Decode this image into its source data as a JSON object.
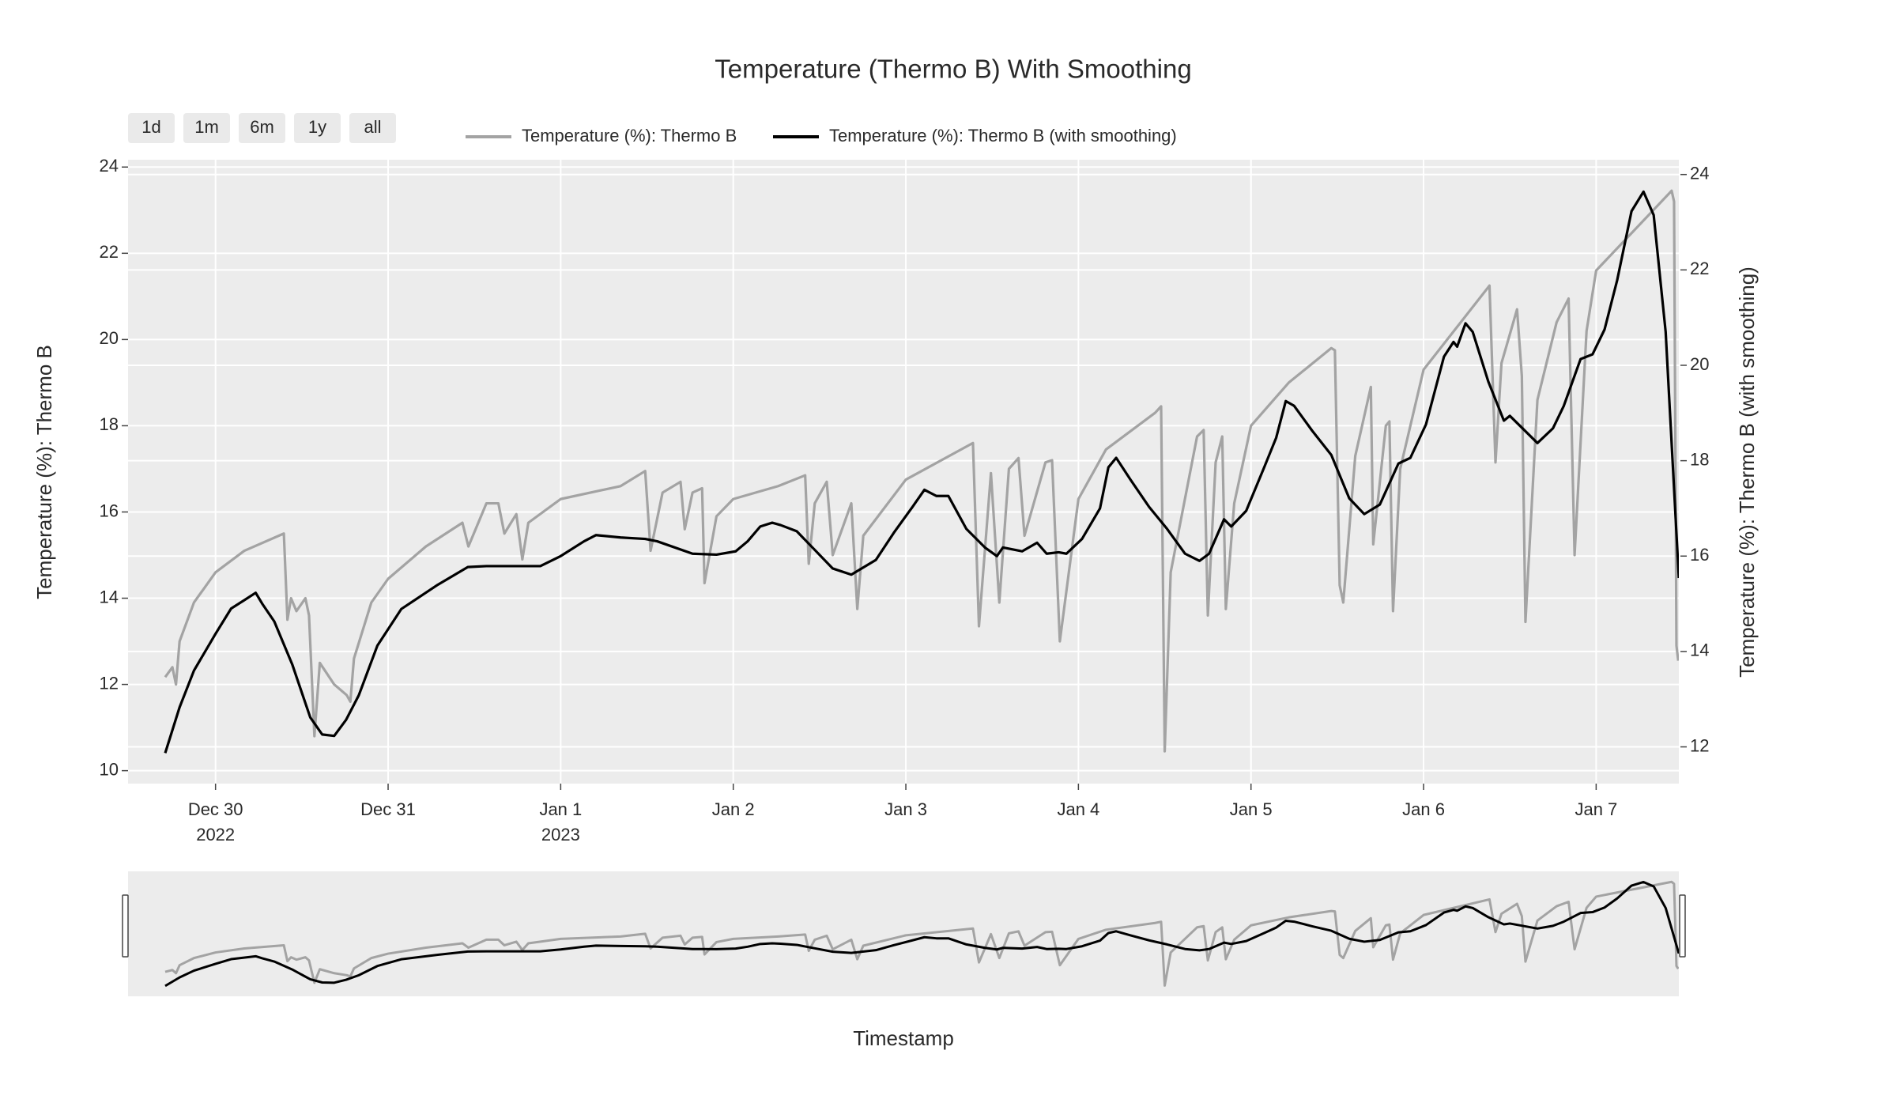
{
  "chart_data": {
    "type": "line",
    "title": "Temperature (Thermo B) With Smoothing",
    "xlabel": "Timestamp",
    "ylabel": "Temperature (%): Thermo B",
    "y2label": "Temperature (%): Thermo B (with smoothing)",
    "rangeselector": [
      "1d",
      "1m",
      "6m",
      "1y",
      "all"
    ],
    "rangeslider": true,
    "grid": true,
    "xlim": [
      "2022-12-29 11:50",
      "2023-01-07 11:30"
    ],
    "xticks": [
      {
        "value": "2022-12-30 00:00",
        "label": "Dec 30\n2022"
      },
      {
        "value": "2022-12-31 00:00",
        "label": "Dec 31"
      },
      {
        "value": "2023-01-01 00:00",
        "label": "Jan 1\n2023"
      },
      {
        "value": "2023-01-02 00:00",
        "label": "Jan 2"
      },
      {
        "value": "2023-01-03 00:00",
        "label": "Jan 3"
      },
      {
        "value": "2023-01-04 00:00",
        "label": "Jan 4"
      },
      {
        "value": "2023-01-05 00:00",
        "label": "Jan 5"
      },
      {
        "value": "2023-01-06 00:00",
        "label": "Jan 6"
      },
      {
        "value": "2023-01-07 00:00",
        "label": "Jan 7"
      }
    ],
    "ylim": [
      9.7,
      24.17
    ],
    "yticks": [
      10,
      12,
      14,
      16,
      18,
      20,
      22,
      24
    ],
    "y2lim": [
      11.23,
      24.31
    ],
    "y2ticks": [
      12,
      14,
      16,
      18,
      20,
      22,
      24
    ],
    "series": [
      {
        "name": "Temperature (%): Thermo B",
        "color": "#a3a3a3",
        "x": [
          "2022-12-29 17:00",
          "2022-12-29 18:00",
          "2022-12-29 18:30",
          "2022-12-29 19:00",
          "2022-12-29 21:00",
          "2022-12-30 00:00",
          "2022-12-30 04:00",
          "2022-12-30 09:30",
          "2022-12-30 10:00",
          "2022-12-30 10:30",
          "2022-12-30 11:15",
          "2022-12-30 12:30",
          "2022-12-30 13:00",
          "2022-12-30 13:45",
          "2022-12-30 14:30",
          "2022-12-30 16:30",
          "2022-12-30 18:15",
          "2022-12-30 18:45",
          "2022-12-30 19:15",
          "2022-12-30 21:40",
          "2022-12-31 00:00",
          "2022-12-31 05:15",
          "2022-12-31 10:20",
          "2022-12-31 11:10",
          "2022-12-31 13:40",
          "2022-12-31 15:20",
          "2022-12-31 16:10",
          "2022-12-31 17:50",
          "2022-12-31 18:40",
          "2022-12-31 19:30",
          "2023-01-01 00:00",
          "2023-01-01 08:20",
          "2023-01-01 11:45",
          "2023-01-01 12:30",
          "2023-01-01 14:10",
          "2023-01-01 16:40",
          "2023-01-01 17:15",
          "2023-01-01 18:20",
          "2023-01-01 19:40",
          "2023-01-01 20:00",
          "2023-01-01 21:40",
          "2023-01-02 00:00",
          "2023-01-02 06:15",
          "2023-01-02 10:00",
          "2023-01-02 10:30",
          "2023-01-02 11:20",
          "2023-01-02 13:00",
          "2023-01-02 13:50",
          "2023-01-02 16:25",
          "2023-01-02 17:15",
          "2023-01-02 18:05",
          "2023-01-03 00:00",
          "2023-01-03 09:20",
          "2023-01-03 10:10",
          "2023-01-03 11:50",
          "2023-01-03 13:00",
          "2023-01-03 14:20",
          "2023-01-03 15:40",
          "2023-01-03 16:30",
          "2023-01-03 19:25",
          "2023-01-03 20:20",
          "2023-01-03 21:25",
          "2023-01-04 00:00",
          "2023-01-04 03:50",
          "2023-01-04 10:40",
          "2023-01-04 11:30",
          "2023-01-04 12:00",
          "2023-01-04 12:50",
          "2023-01-04 16:30",
          "2023-01-04 17:25",
          "2023-01-04 18:00",
          "2023-01-04 19:05",
          "2023-01-04 20:00",
          "2023-01-04 20:30",
          "2023-01-04 21:40",
          "2023-01-05 00:00",
          "2023-01-05 05:15",
          "2023-01-05 11:10",
          "2023-01-05 11:40",
          "2023-01-05 12:20",
          "2023-01-05 12:50",
          "2023-01-05 14:30",
          "2023-01-05 16:40",
          "2023-01-05 17:00",
          "2023-01-05 18:45",
          "2023-01-05 19:15",
          "2023-01-05 19:45",
          "2023-01-05 20:45",
          "2023-01-06 00:00",
          "2023-01-06 09:10",
          "2023-01-06 10:00",
          "2023-01-06 10:50",
          "2023-01-06 13:00",
          "2023-01-06 13:40",
          "2023-01-06 14:10",
          "2023-01-06 15:50",
          "2023-01-06 18:30",
          "2023-01-06 20:10",
          "2023-01-06 21:00",
          "2023-01-06 22:40",
          "2023-01-07 00:00",
          "2023-01-07 10:30",
          "2023-01-07 10:50",
          "2023-01-07 11:10",
          "2023-01-07 11:25"
        ],
        "values": [
          12.17,
          12.4,
          12.0,
          13.0,
          13.9,
          14.6,
          15.1,
          15.5,
          13.5,
          14.0,
          13.7,
          14.0,
          13.6,
          10.8,
          12.5,
          12.0,
          11.75,
          11.6,
          12.6,
          13.9,
          14.45,
          15.2,
          15.75,
          15.2,
          16.2,
          16.2,
          15.5,
          15.95,
          14.9,
          15.75,
          16.3,
          16.6,
          16.95,
          15.1,
          16.45,
          16.7,
          15.6,
          16.45,
          16.55,
          14.35,
          15.9,
          16.3,
          16.6,
          16.85,
          14.8,
          16.2,
          16.7,
          15.0,
          16.2,
          13.75,
          15.45,
          16.75,
          17.6,
          13.35,
          16.9,
          13.9,
          17.0,
          17.25,
          15.45,
          17.15,
          17.2,
          13.0,
          16.3,
          17.45,
          18.3,
          18.45,
          10.45,
          14.6,
          17.75,
          17.9,
          13.6,
          17.15,
          17.75,
          13.75,
          16.2,
          18.0,
          19.0,
          19.8,
          19.75,
          14.3,
          13.9,
          17.3,
          18.9,
          15.25,
          18.0,
          18.1,
          13.7,
          17.0,
          19.3,
          21.25,
          17.15,
          19.45,
          20.7,
          19.15,
          13.45,
          18.6,
          20.4,
          20.95,
          15.0,
          20.2,
          21.6,
          23.45,
          23.2,
          12.9,
          12.55
        ]
      },
      {
        "name": "Temperature (%): Thermo B (with smoothing)",
        "color": "#000000",
        "axis": "y2",
        "x": [
          "2022-12-29 17:00",
          "2022-12-29 19:00",
          "2022-12-29 21:00",
          "2022-12-30 00:00",
          "2022-12-30 02:10",
          "2022-12-30 03:50",
          "2022-12-30 05:35",
          "2022-12-30 06:30",
          "2022-12-30 08:10",
          "2022-12-30 10:40",
          "2022-12-30 13:10",
          "2022-12-30 14:50",
          "2022-12-30 16:30",
          "2022-12-30 18:10",
          "2022-12-30 19:55",
          "2022-12-30 22:30",
          "2022-12-31 01:50",
          "2022-12-31 06:55",
          "2022-12-31 11:05",
          "2022-12-31 13:40",
          "2022-12-31 18:40",
          "2022-12-31 21:10",
          "2023-01-01 00:00",
          "2023-01-01 03:15",
          "2023-01-01 04:55",
          "2023-01-01 08:20",
          "2023-01-01 11:45",
          "2023-01-01 13:25",
          "2023-01-01 18:20",
          "2023-01-01 21:40",
          "2023-01-02 00:20",
          "2023-01-02 02:00",
          "2023-01-02 03:45",
          "2023-01-02 05:25",
          "2023-01-02 06:35",
          "2023-01-02 08:50",
          "2023-01-02 11:20",
          "2023-01-02 13:50",
          "2023-01-02 16:25",
          "2023-01-02 19:50",
          "2023-01-02 22:20",
          "2023-01-03 00:55",
          "2023-01-03 02:35",
          "2023-01-03 04:15",
          "2023-01-03 05:55",
          "2023-01-03 08:25",
          "2023-01-03 11:00",
          "2023-01-03 12:40",
          "2023-01-03 13:30",
          "2023-01-03 16:10",
          "2023-01-03 18:15",
          "2023-01-03 19:35",
          "2023-01-03 21:15",
          "2023-01-03 22:20",
          "2023-01-04 00:30",
          "2023-01-04 03:00",
          "2023-01-04 04:10",
          "2023-01-04 05:15",
          "2023-01-04 07:15",
          "2023-01-04 09:50",
          "2023-01-04 12:20",
          "2023-01-04 14:50",
          "2023-01-04 16:50",
          "2023-01-04 18:10",
          "2023-01-04 20:15",
          "2023-01-04 21:15",
          "2023-01-04 23:20",
          "2023-01-05 01:50",
          "2023-01-05 03:30",
          "2023-01-05 04:50",
          "2023-01-05 06:00",
          "2023-01-05 08:30",
          "2023-01-05 11:10",
          "2023-01-05 13:40",
          "2023-01-05 15:45",
          "2023-01-05 17:55",
          "2023-01-05 20:30",
          "2023-01-05 22:10",
          "2023-01-06 00:20",
          "2023-01-06 02:50",
          "2023-01-06 04:10",
          "2023-01-06 04:40",
          "2023-01-06 05:50",
          "2023-01-06 06:50",
          "2023-01-06 09:00",
          "2023-01-06 11:10",
          "2023-01-06 12:00",
          "2023-01-06 15:50",
          "2023-01-06 18:00",
          "2023-01-06 19:30",
          "2023-01-06 21:50",
          "2023-01-06 23:30",
          "2023-01-07 01:10",
          "2023-01-07 02:55",
          "2023-01-07 04:55",
          "2023-01-07 06:35",
          "2023-01-07 08:00",
          "2023-01-07 09:40",
          "2023-01-07 11:30"
        ],
        "values": [
          11.87,
          12.83,
          13.6,
          14.37,
          14.9,
          15.06,
          15.23,
          15.0,
          14.63,
          13.73,
          12.62,
          12.26,
          12.23,
          12.57,
          13.08,
          14.12,
          14.89,
          15.4,
          15.77,
          15.79,
          15.79,
          15.79,
          16.0,
          16.31,
          16.44,
          16.39,
          16.36,
          16.31,
          16.05,
          16.03,
          16.1,
          16.31,
          16.62,
          16.7,
          16.65,
          16.52,
          16.13,
          15.74,
          15.61,
          15.92,
          16.49,
          17.03,
          17.39,
          17.26,
          17.26,
          16.57,
          16.18,
          16.0,
          16.18,
          16.1,
          16.28,
          16.05,
          16.08,
          16.05,
          16.36,
          17.0,
          17.86,
          18.06,
          17.6,
          17.03,
          16.57,
          16.05,
          15.9,
          16.05,
          16.77,
          16.62,
          16.95,
          17.86,
          18.48,
          19.25,
          19.15,
          18.63,
          18.12,
          17.21,
          16.88,
          17.08,
          17.94,
          18.06,
          18.76,
          20.18,
          20.49,
          20.39,
          20.88,
          20.7,
          19.66,
          18.84,
          18.94,
          18.37,
          18.68,
          19.15,
          20.13,
          20.23,
          20.75,
          21.78,
          23.23,
          23.64,
          23.15,
          20.7,
          15.54
        ]
      }
    ]
  }
}
